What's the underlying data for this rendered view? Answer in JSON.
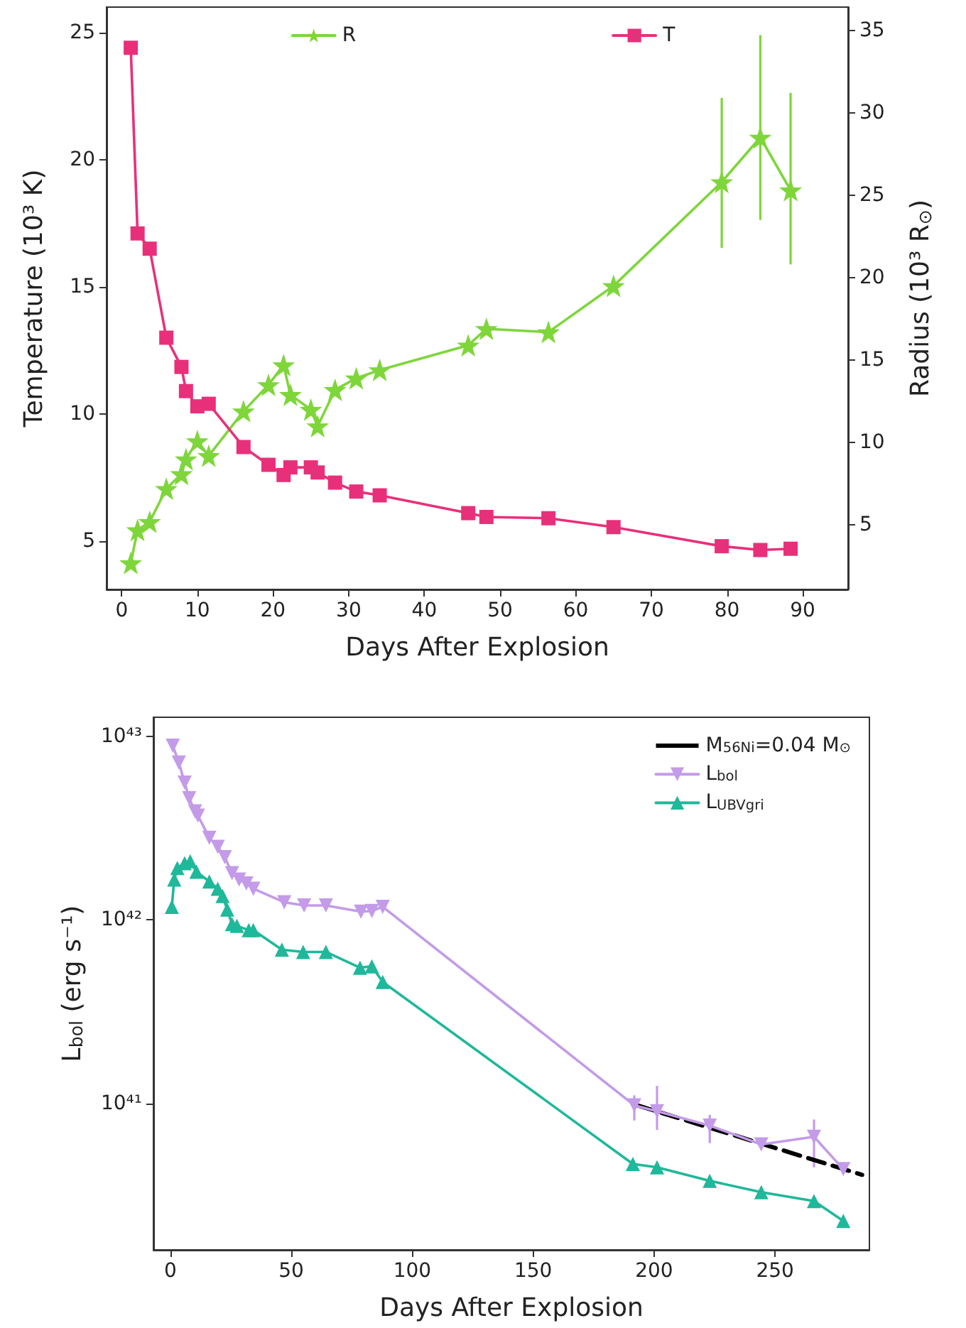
{
  "chart_data": [
    {
      "type": "line",
      "xlabel": "Days After Explosion",
      "ylabel": "Temperature (10³ K)",
      "y2label": "Radius (10³ R$_{⊙}$)",
      "x": [
        1.2,
        2.1,
        3.7,
        5.9,
        7.9,
        8.5,
        10.0,
        11.5,
        16.1,
        19.4,
        21.4,
        22.3,
        25.0,
        25.9,
        28.2,
        31.0,
        34.1,
        45.8,
        48.2,
        56.4,
        65.0,
        79.3,
        84.4,
        88.4
      ],
      "series": [
        {
          "name": "R",
          "color": "#7ed63a",
          "axis": "y2",
          "marker": "star",
          "values": [
            2.7,
            4.7,
            5.2,
            7.2,
            8.1,
            9.0,
            10.1,
            9.2,
            11.9,
            13.5,
            14.7,
            12.9,
            12.0,
            11.0,
            13.2,
            13.9,
            14.4,
            15.9,
            16.9,
            16.7,
            19.5,
            25.8,
            28.5,
            25.3
          ],
          "errors": [
            null,
            null,
            null,
            null,
            null,
            null,
            null,
            null,
            null,
            null,
            null,
            null,
            null,
            null,
            null,
            null,
            null,
            null,
            null,
            null,
            null,
            [
              21.8,
              30.9
            ],
            [
              23.5,
              34.7
            ],
            [
              20.8,
              31.2
            ]
          ]
        },
        {
          "name": "T",
          "color": "#e8307a",
          "marker": "square",
          "values": [
            24.4,
            17.1,
            16.5,
            13.0,
            11.85,
            10.9,
            10.3,
            10.4,
            8.7,
            8.0,
            7.6,
            7.9,
            7.9,
            7.7,
            7.3,
            6.95,
            6.8,
            6.1,
            5.95,
            5.9,
            5.55,
            4.8,
            4.65,
            4.7
          ]
        }
      ],
      "xlim": [
        -2,
        96
      ],
      "xticks": [
        0,
        10,
        20,
        30,
        40,
        50,
        60,
        70,
        80,
        90
      ],
      "ylim": [
        3.1,
        26
      ],
      "yticks": [
        5,
        10,
        15,
        20,
        25
      ],
      "y2lim": [
        1.1,
        36.4
      ],
      "y2ticks": [
        5,
        10,
        15,
        20,
        25,
        30,
        35
      ],
      "grid": false,
      "legend": "top"
    },
    {
      "type": "line",
      "xlabel": "Days After Explosion",
      "ylabel": "L$_{bol}$ (erg s⁻¹)",
      "log": "y",
      "series": [
        {
          "name": "M$_{56Ni}$=0.04 M$_{⊙}$",
          "color": "#000000",
          "line_style": "dashed",
          "marker": "none",
          "x": [
            193,
            286
          ],
          "values": [
            9.8e+40,
            4.1e+40
          ]
        },
        {
          "name": "L$_{bol}$",
          "color": "#c39be8",
          "marker": "triangle-down",
          "x": [
            1.0,
            3.5,
            5.9,
            7.8,
            10.2,
            11.4,
            16.1,
            19.6,
            22.5,
            25.5,
            28.4,
            31.4,
            34.3,
            47.1,
            55.3,
            64.3,
            78.8,
            83.3,
            87.8,
            191.8,
            201.2,
            223.0,
            244.3,
            266.1,
            278.2
          ],
          "values": [
            8.9e+42,
            7.2e+42,
            5.6e+42,
            4.6e+42,
            3.9e+42,
            3.7e+42,
            2.8e+42,
            2.5e+42,
            2.2e+42,
            1.8e+42,
            1.66e+42,
            1.58e+42,
            1.48e+42,
            1.25e+42,
            1.2e+42,
            1.2e+42,
            1.11e+42,
            1.12e+42,
            1.18e+42,
            9.8e+40,
            9.1e+40,
            7.6e+40,
            6e+40,
            6.6e+40,
            4.4e+40
          ],
          "errors": [
            null,
            null,
            null,
            null,
            null,
            null,
            null,
            null,
            null,
            null,
            null,
            null,
            null,
            null,
            null,
            null,
            null,
            null,
            null,
            [
              8.1e+40,
              1.11e+41
            ],
            [
              7.2e+40,
              1.25e+41
            ],
            [
              6.1e+40,
              8.7e+40
            ],
            null,
            [
              4.5e+40,
              8.2e+40
            ],
            null
          ]
        },
        {
          "name": "L$_{UBVgri}$",
          "color": "#1fb89a",
          "marker": "triangle",
          "x": [
            0.6,
            1.6,
            2.9,
            5.9,
            8.2,
            10.8,
            16.1,
            19.6,
            21.6,
            23.5,
            25.5,
            27.5,
            32.4,
            34.3,
            46.1,
            54.9,
            64.3,
            78.4,
            83.3,
            87.8,
            191.2,
            201.2,
            223.0,
            244.3,
            266.1,
            278.2
          ],
          "values": [
            1.18e+42,
            1.66e+42,
            1.92e+42,
            2.04e+42,
            2.09e+42,
            1.83e+42,
            1.62e+42,
            1.48e+42,
            1.35e+42,
            1.14e+42,
            9.5e+41,
            9.3e+41,
            8.8e+41,
            8.8e+41,
            6.9e+41,
            6.7e+41,
            6.7e+41,
            5.5e+41,
            5.6e+41,
            4.6e+41,
            4.7e+40,
            4.5e+40,
            3.8e+40,
            3.3e+40,
            2.95e+40,
            2.3e+40
          ]
        }
      ],
      "xlim": [
        -7,
        289
      ],
      "xticks": [
        0,
        50,
        100,
        150,
        200,
        250
      ],
      "ylim": [
        1.6e+40,
        1.27e+43
      ],
      "yticks": [
        {
          "value": 1e+41,
          "label": "10⁴¹"
        },
        {
          "value": 1e+42,
          "label": "10⁴²"
        },
        {
          "value": 1e+43,
          "label": "10⁴³"
        }
      ],
      "grid": false,
      "legend": "top right"
    }
  ]
}
